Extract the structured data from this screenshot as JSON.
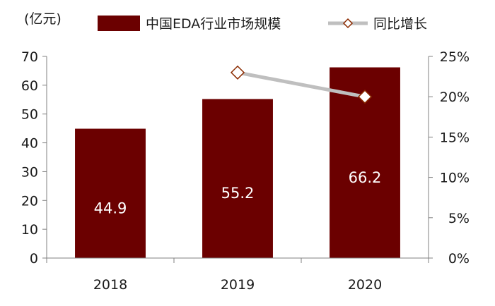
{
  "chart_data": {
    "type": "bar",
    "categories": [
      "2018",
      "2019",
      "2020"
    ],
    "series": [
      {
        "name": "中国EDA行业市场规模",
        "type": "bar",
        "axis": "left",
        "values": [
          44.9,
          55.2,
          66.2
        ],
        "data_labels": [
          "44.9",
          "55.2",
          "66.2"
        ],
        "color": "#6b0000"
      },
      {
        "name": "同比增长",
        "type": "line",
        "axis": "right",
        "values": [
          null,
          23,
          20
        ],
        "color": "#bfbfbf",
        "marker_edge": "#8b2a00"
      }
    ],
    "y_unit": "(亿元)",
    "ylim": [
      0,
      70
    ],
    "y_ticks": [
      "0",
      "10",
      "20",
      "30",
      "40",
      "50",
      "60",
      "70"
    ],
    "y2lim": [
      0,
      25
    ],
    "y2_ticks": [
      "0%",
      "5%",
      "10%",
      "15%",
      "20%",
      "25%"
    ],
    "legend": [
      "中国EDA行业市场规模",
      "同比增长"
    ],
    "legend_position": "top"
  }
}
